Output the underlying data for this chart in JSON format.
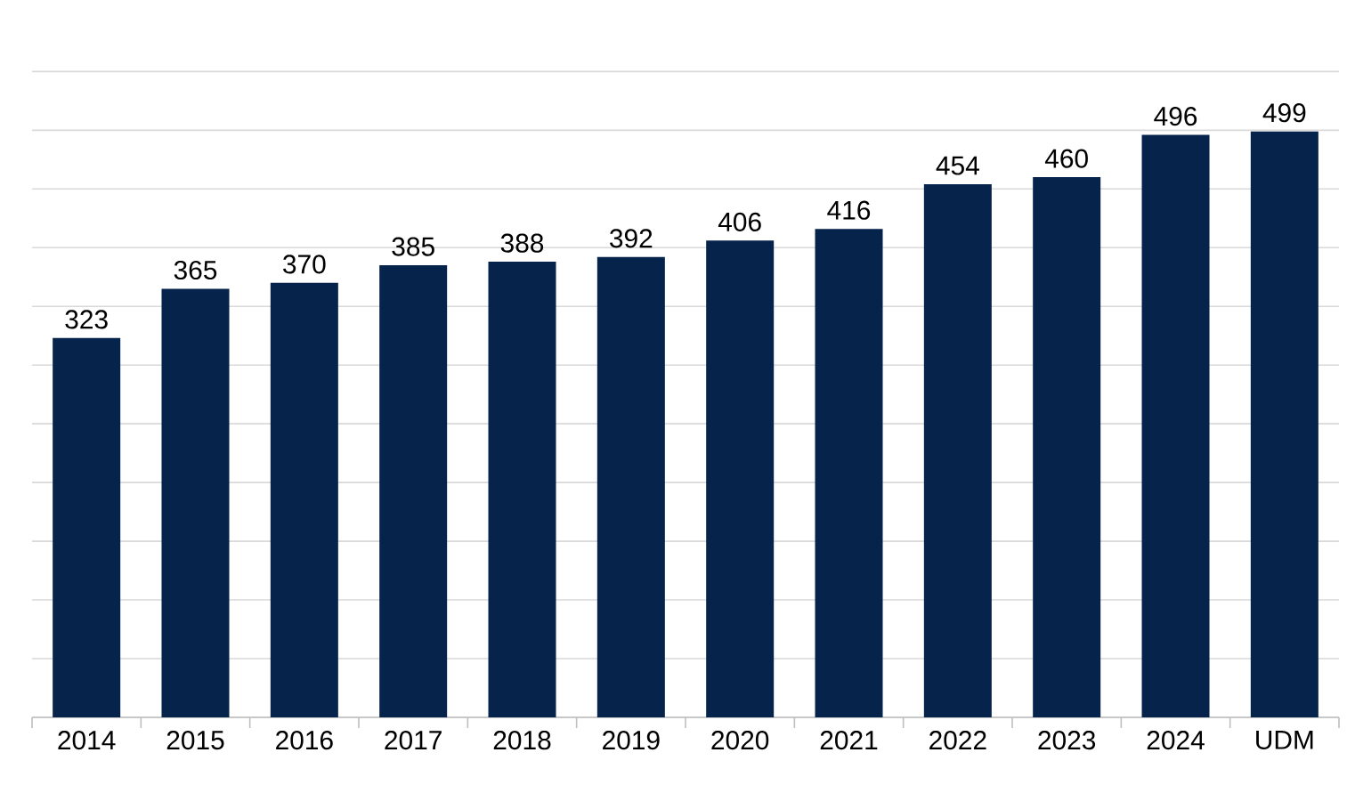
{
  "chart_data": {
    "type": "bar",
    "categories": [
      "2014",
      "2015",
      "2016",
      "2017",
      "2018",
      "2019",
      "2020",
      "2021",
      "2022",
      "2023",
      "2024",
      "UDM"
    ],
    "values": [
      323,
      365,
      370,
      385,
      388,
      392,
      406,
      416,
      454,
      460,
      496,
      499
    ],
    "color": "#05234b",
    "grid": "y",
    "tick_labels": "x",
    "data_labels": true
  }
}
